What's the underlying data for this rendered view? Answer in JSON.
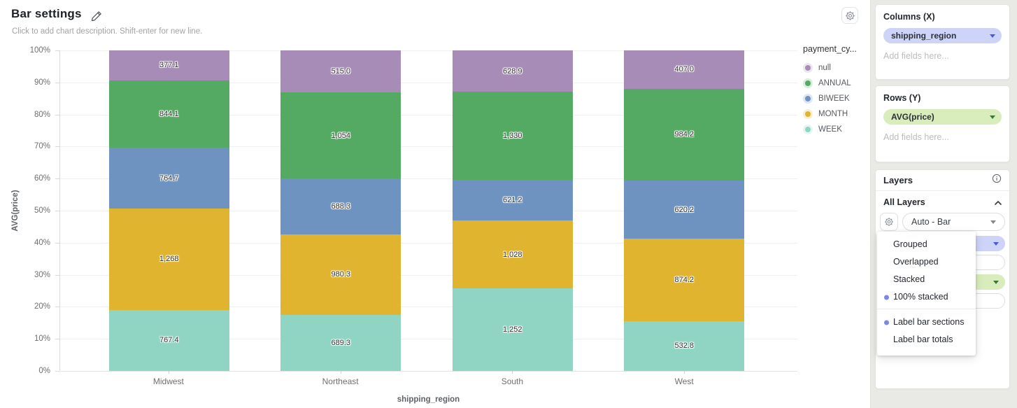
{
  "header": {
    "title": "Bar settings",
    "description_placeholder": "Click to add chart description. Shift-enter for new line."
  },
  "chart_data": {
    "type": "bar",
    "variant": "100% stacked",
    "categories": [
      "Midwest",
      "Northeast",
      "South",
      "West"
    ],
    "series": [
      {
        "name": "null",
        "color": "#a78cb8",
        "values": [
          377.1,
          515.0,
          628.9,
          407.0
        ],
        "labels": [
          "377.1",
          "515.0",
          "628.9",
          "407.0"
        ]
      },
      {
        "name": "ANNUAL",
        "color": "#54aa62",
        "values": [
          844.1,
          1054,
          1330,
          984.2
        ],
        "labels": [
          "844.1",
          "1,054",
          "1,330",
          "984.2"
        ]
      },
      {
        "name": "BIWEEK",
        "color": "#6e93c0",
        "values": [
          764.7,
          688.3,
          621.2,
          620.2
        ],
        "labels": [
          "764.7",
          "688.3",
          "621.2",
          "620.2"
        ]
      },
      {
        "name": "MONTH",
        "color": "#e0b42e",
        "values": [
          1268,
          980.3,
          1028,
          874.2
        ],
        "labels": [
          "1,268",
          "980.3",
          "1,028",
          "874.2"
        ]
      },
      {
        "name": "WEEK",
        "color": "#90d5c3",
        "values": [
          767.4,
          689.3,
          1252,
          532.8
        ],
        "labels": [
          "767.4",
          "689.3",
          "1,252",
          "532.8"
        ]
      }
    ],
    "stack_order_top_to_bottom": [
      "null",
      "ANNUAL",
      "BIWEEK",
      "MONTH",
      "WEEK"
    ],
    "xlabel": "shipping_region",
    "ylabel": "AVG(price)",
    "y_ticks": [
      "100%",
      "90%",
      "80%",
      "70%",
      "60%",
      "50%",
      "40%",
      "30%",
      "20%",
      "10%",
      "0%"
    ],
    "ylim": [
      "0%",
      "100%"
    ],
    "grid": true,
    "legend_position": "right",
    "legend_title": "payment_cy..."
  },
  "panel": {
    "columns_section": {
      "title": "Columns (X)",
      "field": "shipping_region",
      "placeholder": "Add fields here..."
    },
    "rows_section": {
      "title": "Rows (Y)",
      "field": "AVG(price)",
      "placeholder": "Add fields here..."
    },
    "layers_section": {
      "title": "Layers",
      "group_title": "All Layers",
      "mark_select_value": "Auto - Bar",
      "placeholder": "Add fields here...",
      "menu": {
        "options": [
          {
            "label": "Grouped",
            "selected": false
          },
          {
            "label": "Overlapped",
            "selected": false
          },
          {
            "label": "Stacked",
            "selected": false
          },
          {
            "label": "100% stacked",
            "selected": true
          }
        ],
        "toggles": [
          {
            "label": "Label bar sections",
            "selected": true
          },
          {
            "label": "Label bar totals",
            "selected": false
          }
        ]
      }
    }
  },
  "colors": {
    "dimension_pill_bg": "#ced4f7",
    "dimension_accent": "#4a5bd6",
    "measure_pill_bg": "#d9edbc",
    "measure_accent": "#2e7d32",
    "menu_bullet": "#7b87e6",
    "panel_bg": "#e9eae6"
  }
}
